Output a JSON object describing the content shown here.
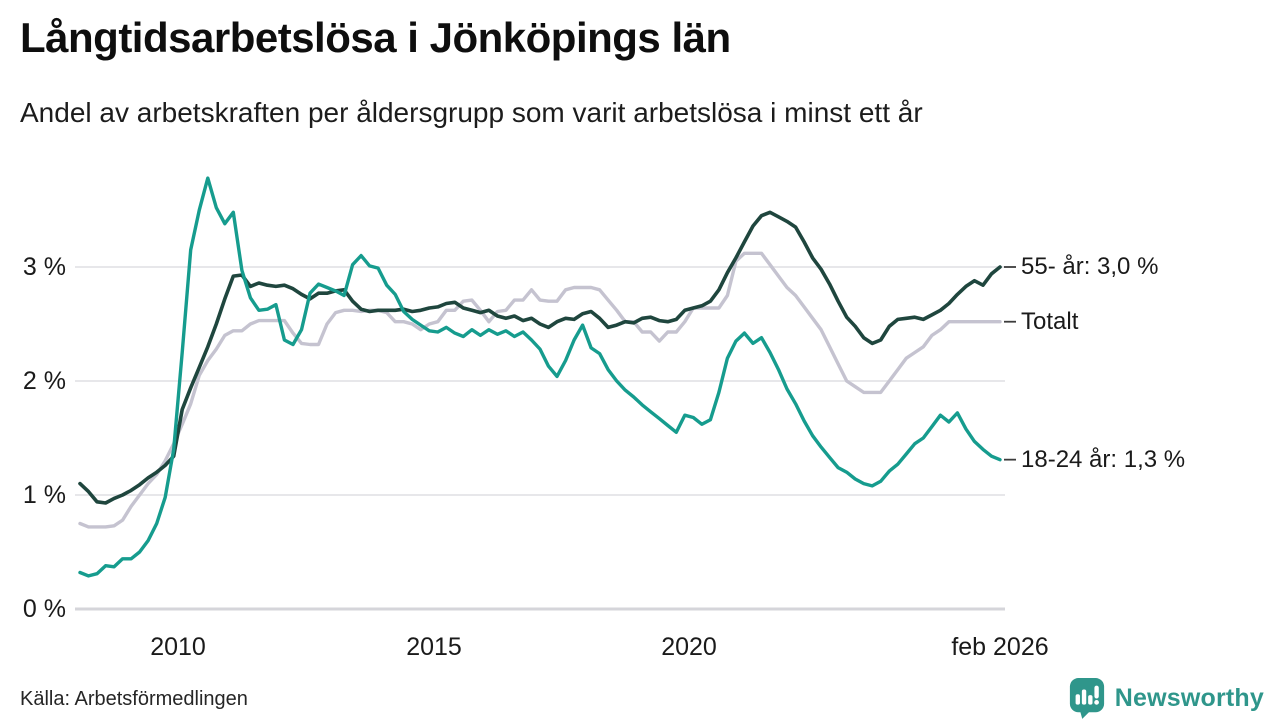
{
  "title": "Långtidsarbetslösa i Jönköpings län",
  "subtitle": "Andel av arbetskraften per åldersgrupp som varit arbetslösa i minst ett år",
  "source": "Källa: Arbetsförmedlingen",
  "logo": {
    "text": "Newsworthy",
    "icon": "newsworthy-speech-bubble-bar-chart-icon",
    "color": "#2f968b"
  },
  "colors": {
    "teal_line": "#169c8e",
    "dark_line": "#1f463e",
    "gray_line": "#c5c3d0",
    "gridline": "#e7e7ea",
    "axis_line": "#d5d5da",
    "text": "#1a1a1a"
  },
  "chart_data": {
    "type": "line",
    "title": "Långtidsarbetslösa i Jönköpings län",
    "subtitle": "Andel av arbetskraften per åldersgrupp som varit arbetslösa i minst ett år",
    "x_start": 2008.083,
    "x_end": 2026.083,
    "x_step_years": 0.1667,
    "ylim": [
      0,
      3.9
    ],
    "grid": "horizontal",
    "legend_position": "right-end-labels",
    "yticks": [
      "0 %",
      "1 %",
      "2 %",
      "3 %"
    ],
    "xticks": [
      "2010",
      "2015",
      "2020",
      "feb 2026"
    ],
    "xtick_years": [
      2010,
      2015,
      2020,
      2026.083
    ],
    "series": [
      {
        "name": "55- år",
        "end_label": "55- år: 3,0 %",
        "last_value_text": "3,0 %",
        "color": "#1f463e",
        "values": [
          1.1,
          1.03,
          0.94,
          0.93,
          0.97,
          1.0,
          1.04,
          1.09,
          1.15,
          1.2,
          1.26,
          1.34,
          1.75,
          1.94,
          2.12,
          2.3,
          2.5,
          2.72,
          2.92,
          2.93,
          2.83,
          2.86,
          2.84,
          2.83,
          2.84,
          2.81,
          2.76,
          2.72,
          2.77,
          2.77,
          2.79,
          2.8,
          2.7,
          2.63,
          2.61,
          2.62,
          2.62,
          2.62,
          2.63,
          2.61,
          2.62,
          2.64,
          2.65,
          2.68,
          2.69,
          2.64,
          2.62,
          2.6,
          2.62,
          2.57,
          2.55,
          2.57,
          2.53,
          2.55,
          2.5,
          2.47,
          2.52,
          2.55,
          2.54,
          2.59,
          2.61,
          2.55,
          2.47,
          2.49,
          2.52,
          2.51,
          2.55,
          2.56,
          2.53,
          2.52,
          2.54,
          2.62,
          2.64,
          2.66,
          2.7,
          2.8,
          2.95,
          3.08,
          3.22,
          3.36,
          3.45,
          3.48,
          3.44,
          3.4,
          3.35,
          3.22,
          3.08,
          2.98,
          2.85,
          2.7,
          2.56,
          2.48,
          2.38,
          2.33,
          2.36,
          2.48,
          2.54,
          2.55,
          2.56,
          2.54,
          2.58,
          2.62,
          2.68,
          2.76,
          2.83,
          2.88,
          2.84,
          2.94,
          3.0
        ]
      },
      {
        "name": "Totalt",
        "end_label": "Totalt",
        "last_value_text": "2,5 %",
        "color": "#c5c3d0",
        "values": [
          0.75,
          0.72,
          0.72,
          0.72,
          0.73,
          0.78,
          0.9,
          1.0,
          1.1,
          1.18,
          1.3,
          1.45,
          1.62,
          1.8,
          2.05,
          2.18,
          2.28,
          2.4,
          2.44,
          2.44,
          2.5,
          2.53,
          2.53,
          2.53,
          2.53,
          2.42,
          2.33,
          2.32,
          2.32,
          2.5,
          2.6,
          2.62,
          2.62,
          2.61,
          2.62,
          2.62,
          2.6,
          2.52,
          2.52,
          2.5,
          2.45,
          2.5,
          2.52,
          2.62,
          2.62,
          2.7,
          2.71,
          2.62,
          2.52,
          2.61,
          2.62,
          2.71,
          2.71,
          2.8,
          2.71,
          2.7,
          2.7,
          2.8,
          2.82,
          2.82,
          2.82,
          2.8,
          2.71,
          2.62,
          2.52,
          2.52,
          2.43,
          2.43,
          2.35,
          2.43,
          2.43,
          2.52,
          2.64,
          2.64,
          2.64,
          2.64,
          2.75,
          3.05,
          3.12,
          3.12,
          3.12,
          3.02,
          2.92,
          2.82,
          2.75,
          2.65,
          2.55,
          2.45,
          2.3,
          2.15,
          2.0,
          1.95,
          1.9,
          1.9,
          1.9,
          2.0,
          2.1,
          2.2,
          2.25,
          2.3,
          2.4,
          2.45,
          2.52,
          2.52,
          2.52,
          2.52,
          2.52,
          2.52,
          2.52
        ]
      },
      {
        "name": "18-24 år",
        "end_label": "18-24 år: 1,3 %",
        "last_value_text": "1,3 %",
        "color": "#169c8e",
        "values": [
          0.32,
          0.29,
          0.31,
          0.38,
          0.37,
          0.44,
          0.44,
          0.5,
          0.6,
          0.75,
          0.98,
          1.4,
          2.25,
          3.15,
          3.5,
          3.78,
          3.52,
          3.38,
          3.48,
          2.97,
          2.73,
          2.62,
          2.63,
          2.67,
          2.36,
          2.32,
          2.45,
          2.77,
          2.85,
          2.82,
          2.79,
          2.75,
          3.02,
          3.1,
          3.01,
          2.99,
          2.84,
          2.76,
          2.61,
          2.54,
          2.49,
          2.44,
          2.43,
          2.47,
          2.42,
          2.39,
          2.45,
          2.4,
          2.45,
          2.41,
          2.44,
          2.39,
          2.43,
          2.36,
          2.28,
          2.13,
          2.04,
          2.18,
          2.36,
          2.49,
          2.29,
          2.24,
          2.1,
          2.0,
          1.92,
          1.86,
          1.79,
          1.73,
          1.67,
          1.61,
          1.55,
          1.7,
          1.68,
          1.62,
          1.66,
          1.9,
          2.2,
          2.35,
          2.42,
          2.33,
          2.38,
          2.25,
          2.1,
          1.93,
          1.8,
          1.65,
          1.52,
          1.42,
          1.33,
          1.24,
          1.2,
          1.14,
          1.1,
          1.08,
          1.12,
          1.21,
          1.27,
          1.36,
          1.45,
          1.5,
          1.6,
          1.7,
          1.64,
          1.72,
          1.58,
          1.47,
          1.4,
          1.34,
          1.31
        ]
      }
    ]
  }
}
